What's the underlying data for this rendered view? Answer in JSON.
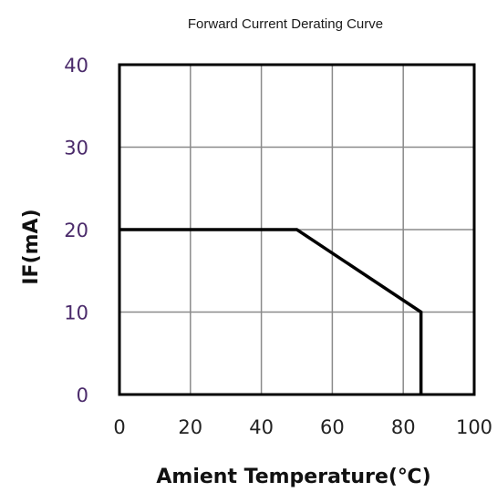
{
  "chart_data": {
    "type": "line",
    "title": "Forward Current Derating Curve",
    "xlabel": "Amient Temperature(℃)",
    "ylabel": "IF(mA)",
    "xlim": [
      0,
      100
    ],
    "ylim": [
      0,
      40
    ],
    "x_ticks": [
      "0",
      "20",
      "40",
      "60",
      "80",
      "100"
    ],
    "y_ticks": [
      "0",
      "10",
      "20",
      "30",
      "40"
    ],
    "grid": true,
    "series": [
      {
        "x": [
          0,
          50,
          85,
          85
        ],
        "y": [
          20,
          20,
          10,
          0
        ]
      }
    ],
    "colors": {
      "line": "#000000",
      "grid": "#8a8a8a",
      "y_tick_text": "#4a2a6a"
    }
  }
}
